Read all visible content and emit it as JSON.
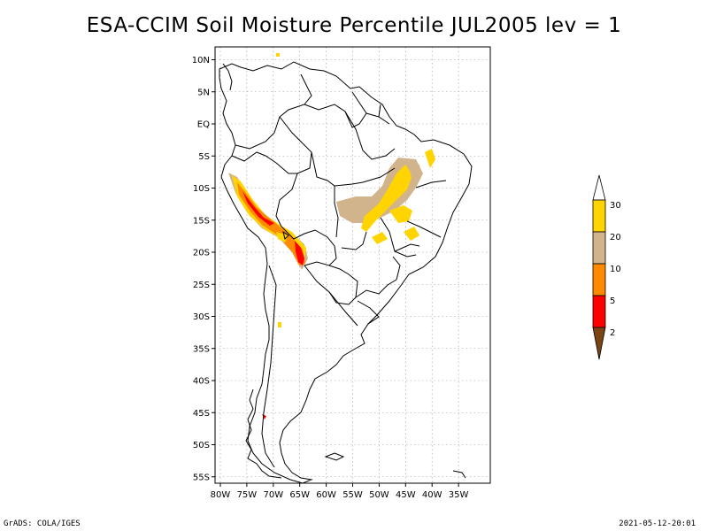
{
  "title": "ESA-CCIM Soil Moisture Percentile JUL2005 lev = 1",
  "footer": {
    "left": "GrADS: COLA/IGES",
    "right": "2021-05-12-20:01"
  },
  "colors": {
    "lt2": "#7a4512",
    "2to5": "#ff0000",
    "5to10": "#ff8a00",
    "10to20": "#d2b48c",
    "20to30": "#ffd400",
    "gt30": "#ffffff"
  },
  "map_data": {
    "lon_range": [
      -81,
      -29
    ],
    "lat_range": [
      -56,
      12
    ],
    "lat_ticks": [
      "10N",
      "5N",
      "EQ",
      "5S",
      "10S",
      "15S",
      "20S",
      "25S",
      "30S",
      "35S",
      "40S",
      "45S",
      "50S",
      "55S"
    ],
    "lon_ticks": [
      "80W",
      "75W",
      "70W",
      "65W",
      "60W",
      "55W",
      "50W",
      "45W",
      "40W",
      "35W"
    ],
    "grid": true
  },
  "legend": {
    "labels": [
      "30",
      "20",
      "10",
      "5",
      "2"
    ]
  }
}
